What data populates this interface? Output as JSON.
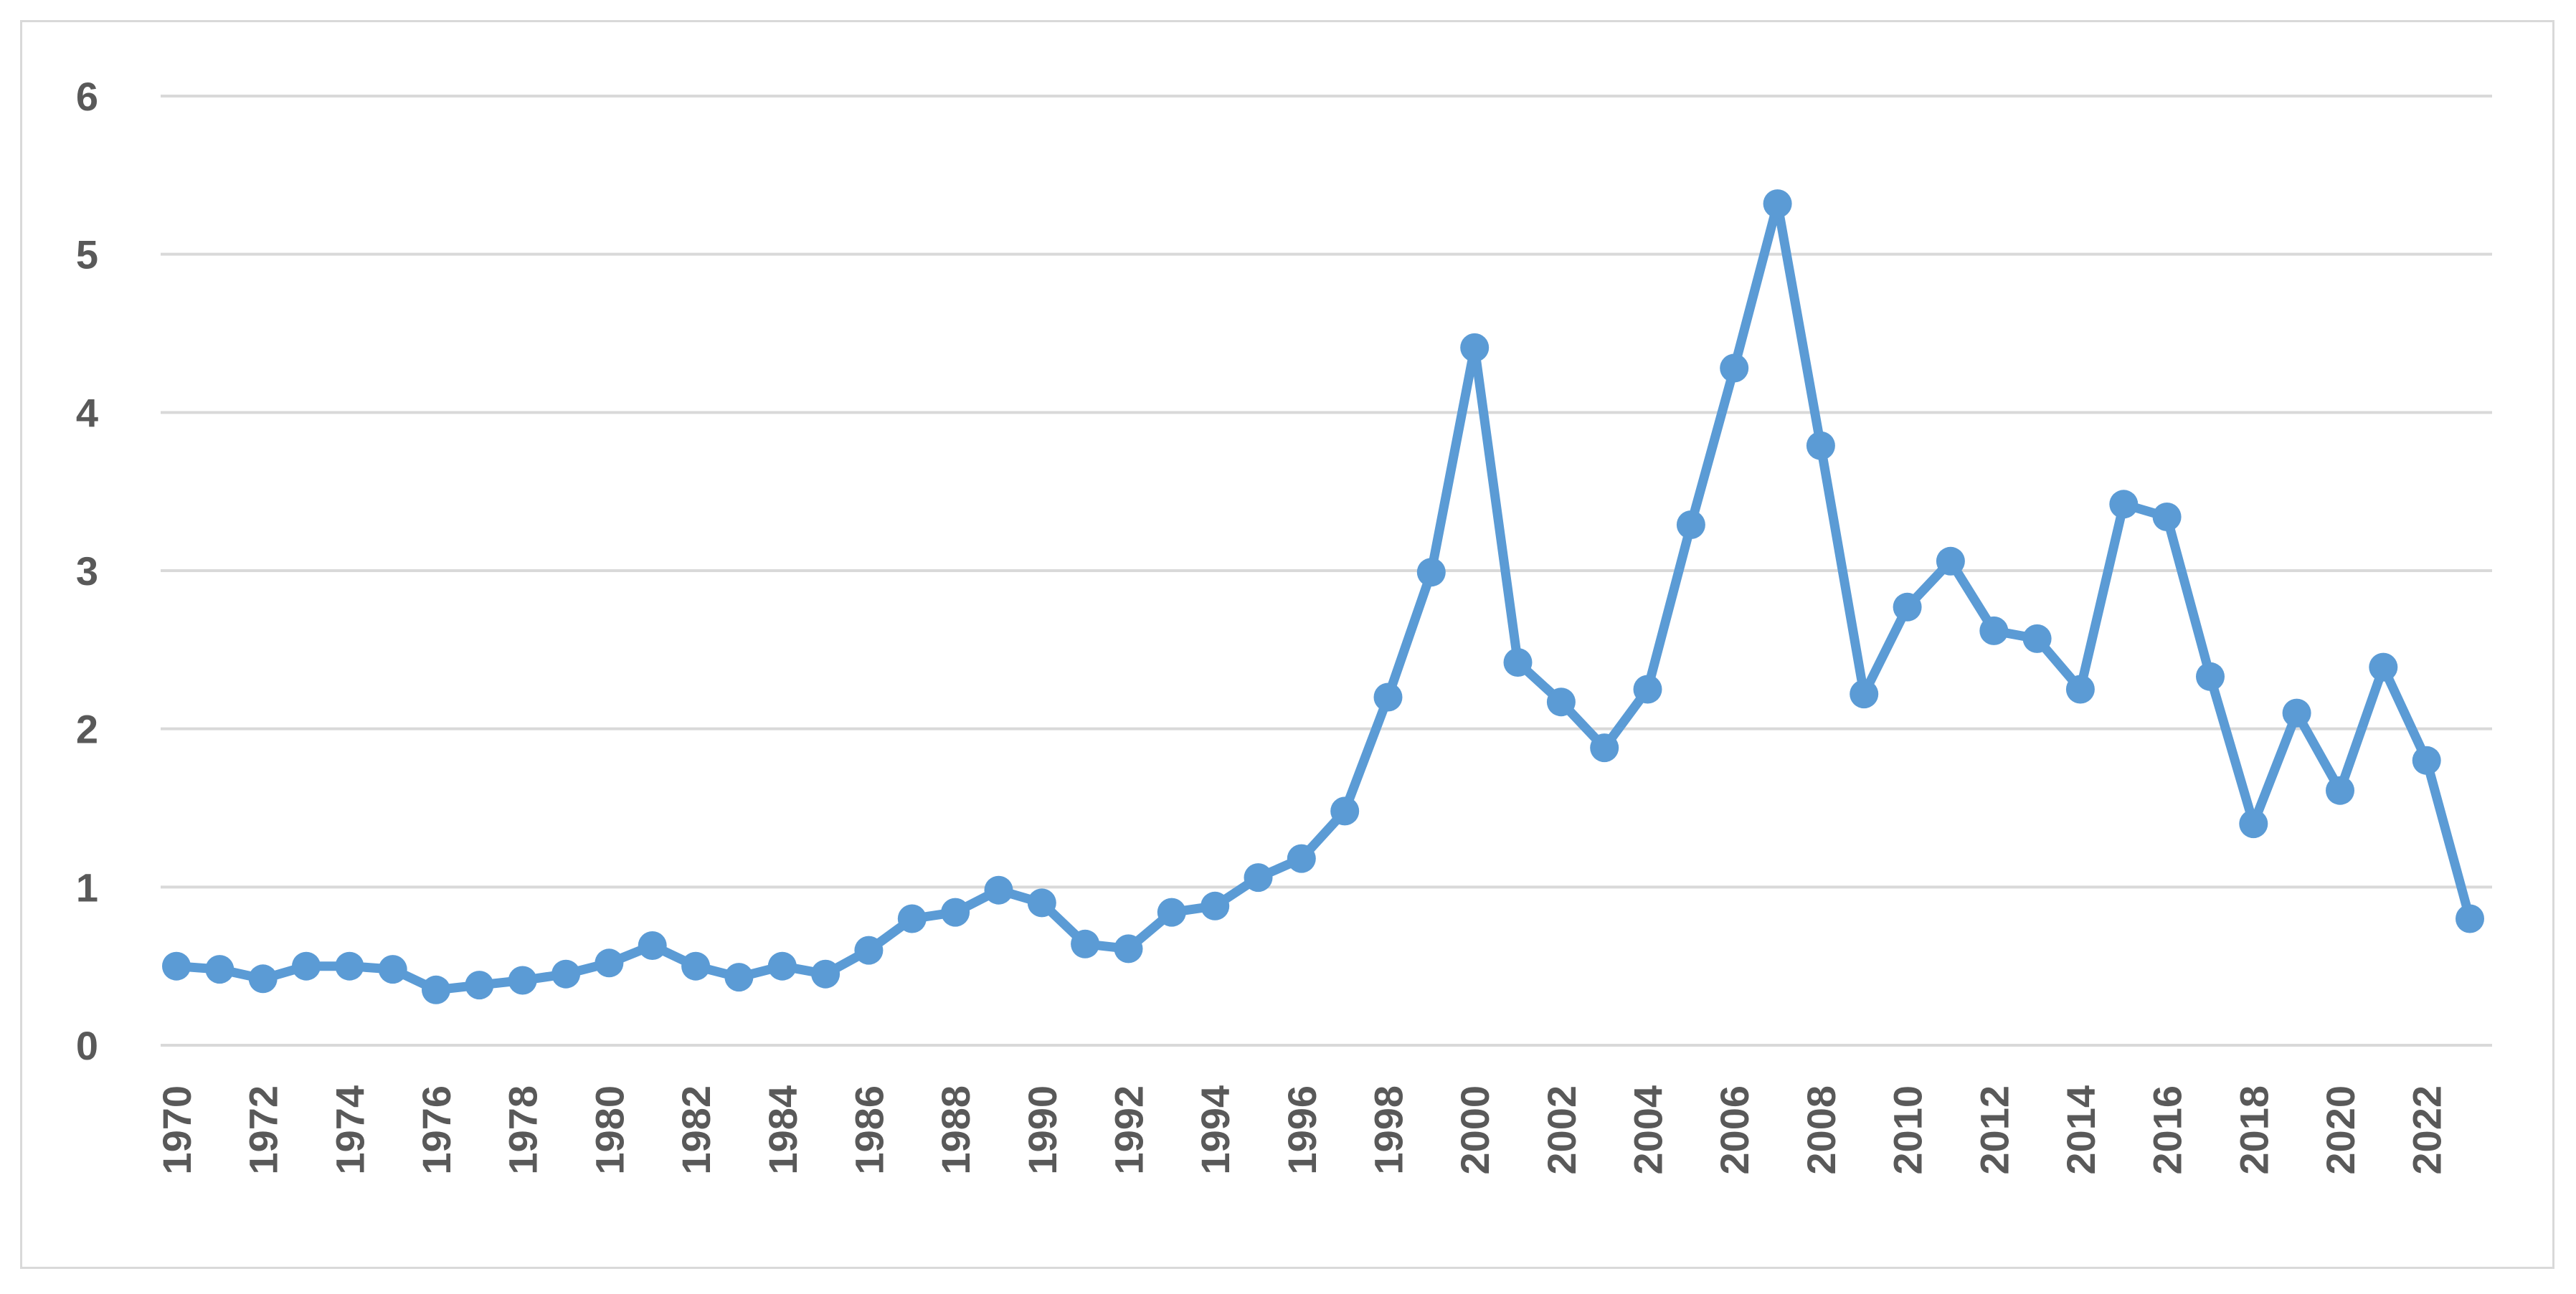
{
  "chart_data": {
    "type": "line",
    "title": "",
    "xlabel": "",
    "ylabel": "",
    "ylim": [
      0,
      6
    ],
    "y_ticks": [
      0,
      1,
      2,
      3,
      4,
      5,
      6
    ],
    "x_tick_labels": [
      "1970",
      "1972",
      "1974",
      "1976",
      "1978",
      "1980",
      "1982",
      "1984",
      "1986",
      "1988",
      "1990",
      "1992",
      "1994",
      "1996",
      "1998",
      "2000",
      "2002",
      "2004",
      "2006",
      "2008",
      "2010",
      "2012",
      "2014",
      "2016",
      "2018",
      "2020",
      "2022"
    ],
    "grid": true,
    "legend": "none",
    "series": [
      {
        "color": "#5b9bd5",
        "x": [
          1970,
          1971,
          1972,
          1973,
          1974,
          1975,
          1976,
          1977,
          1978,
          1979,
          1980,
          1981,
          1982,
          1983,
          1984,
          1985,
          1986,
          1987,
          1988,
          1989,
          1990,
          1991,
          1992,
          1993,
          1994,
          1995,
          1996,
          1997,
          1998,
          1999,
          2000,
          2001,
          2002,
          2003,
          2004,
          2005,
          2006,
          2007,
          2008,
          2009,
          2010,
          2011,
          2012,
          2013,
          2014,
          2015,
          2016,
          2017,
          2018,
          2019,
          2020,
          2021,
          2022,
          2023
        ],
        "values": [
          0.5,
          0.48,
          0.42,
          0.5,
          0.5,
          0.48,
          0.35,
          0.38,
          0.41,
          0.45,
          0.52,
          0.63,
          0.5,
          0.43,
          0.5,
          0.45,
          0.6,
          0.8,
          0.84,
          0.98,
          0.9,
          0.64,
          0.61,
          0.84,
          0.88,
          1.06,
          1.18,
          1.48,
          2.2,
          2.99,
          4.41,
          2.42,
          2.17,
          1.88,
          2.25,
          3.29,
          4.28,
          5.32,
          3.79,
          2.22,
          2.77,
          3.06,
          2.62,
          2.57,
          2.25,
          3.42,
          3.34,
          2.33,
          1.4,
          2.1,
          1.61,
          2.39,
          1.8,
          0.8
        ]
      }
    ]
  },
  "style": {
    "line_color": "#5b9bd5",
    "grid_color": "#d9d9d9",
    "label_color": "#595959",
    "frame_color": "#d9d9d9"
  }
}
